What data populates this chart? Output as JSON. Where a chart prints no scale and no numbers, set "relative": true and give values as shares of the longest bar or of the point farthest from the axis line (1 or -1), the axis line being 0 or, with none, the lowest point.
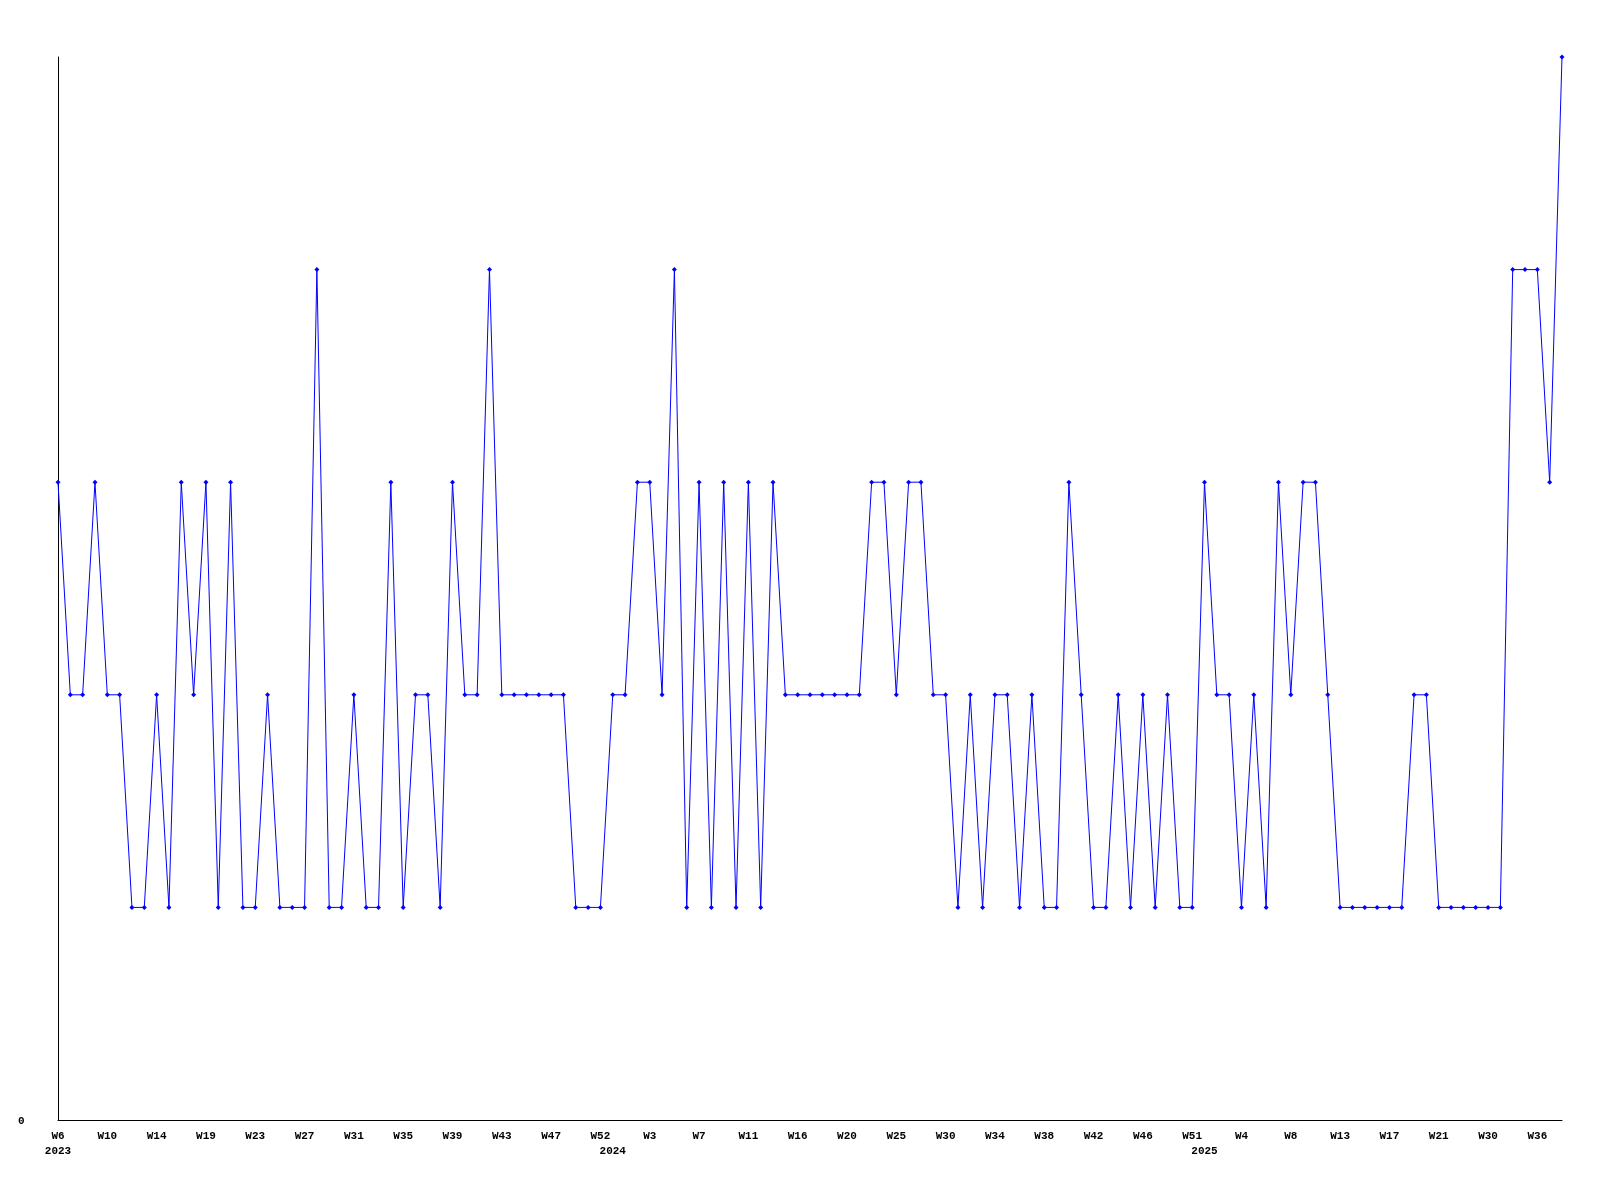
{
  "chart_data": {
    "type": "line",
    "relative": true,
    "marker": "diamond",
    "line_style": "solid",
    "grid": false,
    "annotations": [
      "0"
    ],
    "categories": [
      "W6\n2023",
      null,
      null,
      null,
      "W10",
      null,
      null,
      null,
      "W14",
      null,
      null,
      null,
      "W19",
      null,
      null,
      null,
      "W23",
      null,
      null,
      null,
      "W27",
      null,
      null,
      null,
      "W31",
      null,
      null,
      null,
      "W35",
      null,
      null,
      null,
      "W39",
      null,
      null,
      null,
      "W43",
      null,
      null,
      null,
      "W47",
      null,
      null,
      null,
      "W52",
      "\n2024",
      null,
      null,
      "W3",
      null,
      null,
      null,
      "W7",
      null,
      null,
      null,
      "W11",
      null,
      null,
      null,
      "W16",
      null,
      null,
      null,
      "W20",
      null,
      null,
      null,
      "W25",
      null,
      null,
      null,
      "W30",
      null,
      null,
      null,
      "W34",
      null,
      null,
      null,
      "W38",
      null,
      null,
      null,
      "W42",
      null,
      null,
      null,
      "W46",
      null,
      null,
      null,
      "W51",
      "\n2025",
      null,
      null,
      "W4",
      null,
      null,
      null,
      "W8",
      null,
      null,
      null,
      "W13",
      null,
      null,
      null,
      "W17",
      null,
      null,
      null,
      "W21",
      null,
      null,
      null,
      "W30",
      null,
      null,
      null,
      "W36",
      null,
      null
    ],
    "series": [
      {
        "color": "#0000ff",
        "values": [
          0.6,
          0.4,
          0.4,
          0.6,
          0.4,
          0.4,
          0.2,
          0.2,
          0.4,
          0.2,
          0.6,
          0.4,
          0.6,
          0.2,
          0.6,
          0.2,
          0.2,
          0.4,
          0.2,
          0.2,
          0.2,
          0.8,
          0.2,
          0.2,
          0.4,
          0.2,
          0.2,
          0.6,
          0.2,
          0.4,
          0.4,
          0.2,
          0.6,
          0.4,
          0.4,
          0.8,
          0.4,
          0.4,
          0.4,
          0.4,
          0.4,
          0.4,
          0.2,
          0.2,
          0.2,
          0.4,
          0.4,
          0.6,
          0.6,
          0.4,
          0.8,
          0.2,
          0.6,
          0.2,
          0.6,
          0.2,
          0.6,
          0.2,
          0.6,
          0.4,
          0.4,
          0.4,
          0.4,
          0.4,
          0.4,
          0.4,
          0.6,
          0.6,
          0.4,
          0.6,
          0.6,
          0.4,
          0.4,
          0.2,
          0.4,
          0.2,
          0.4,
          0.4,
          0.2,
          0.4,
          0.2,
          0.2,
          0.6,
          0.4,
          0.2,
          0.2,
          0.4,
          0.2,
          0.4,
          0.2,
          0.4,
          0.2,
          0.2,
          0.6,
          0.4,
          0.4,
          0.2,
          0.4,
          0.2,
          0.6,
          0.4,
          0.6,
          0.6,
          0.4,
          0.2,
          0.2,
          0.2,
          0.2,
          0.2,
          0.2,
          0.4,
          0.4,
          0.2,
          0.2,
          0.2,
          0.2,
          0.2,
          0.2,
          0.8,
          0.8,
          0.8,
          0.6,
          1.0
        ]
      }
    ]
  }
}
